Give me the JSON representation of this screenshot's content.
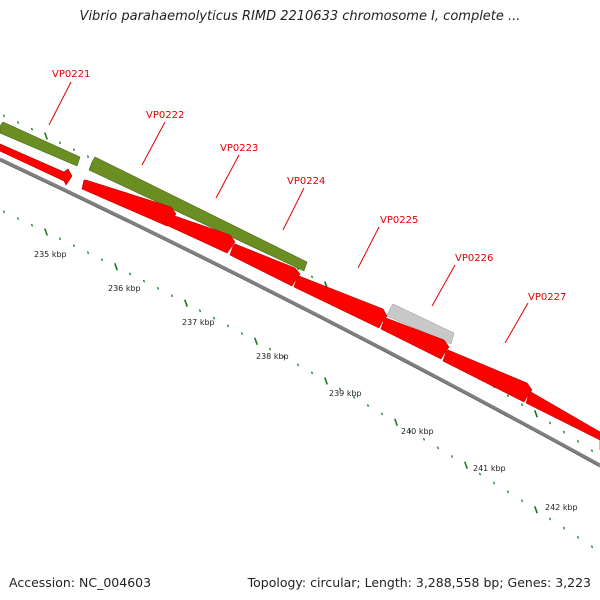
{
  "title": "Vibrio parahaemolyticus RIMD 2210633 chromosome I, complete ...",
  "footer": {
    "accession": "Accession: NC_004603",
    "summary": "Topology: circular; Length: 3,288,558 bp; Genes: 3,223"
  },
  "colors": {
    "forward_gene": "#ff0000",
    "feature_green": "#6b8e23",
    "feature_gray": "#c8c8c8",
    "backbone": "#808080",
    "tick": "#1a7a1a",
    "label": "#e00000"
  },
  "genes": [
    {
      "name": "VP0221"
    },
    {
      "name": "VP0222"
    },
    {
      "name": "VP0223"
    },
    {
      "name": "VP0224"
    },
    {
      "name": "VP0225"
    },
    {
      "name": "VP0226"
    },
    {
      "name": "VP0227"
    }
  ],
  "kbp_labels": [
    "235 kbp",
    "236 kbp",
    "237 kbp",
    "238 kbp",
    "239 kbp",
    "240 kbp",
    "241 kbp",
    "242 kbp"
  ]
}
